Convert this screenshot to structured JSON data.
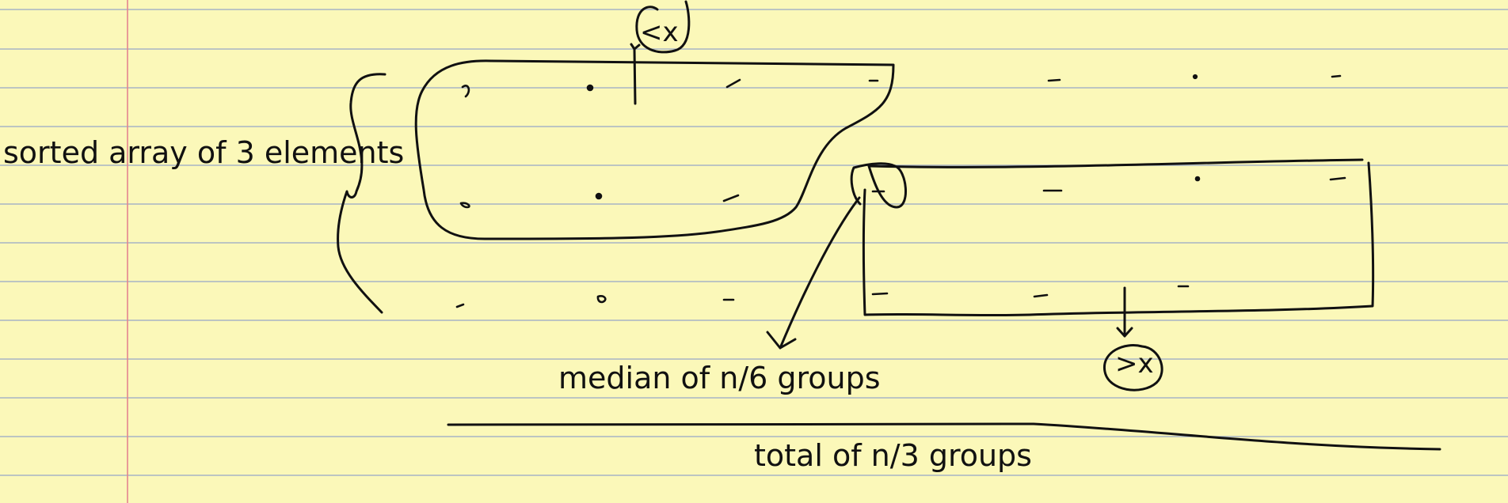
{
  "labels": {
    "sorted_array": "sorted array of 3 elements",
    "median_groups": "median of n/6 groups",
    "total_groups": "total of n/3 groups",
    "less_than_x": "<x",
    "greater_than_x": ">x"
  },
  "colors": {
    "paper": "#fbf8b9",
    "rule_line": "#a8b4c6",
    "margin_line": "#e5848f",
    "ink": "#111111"
  }
}
